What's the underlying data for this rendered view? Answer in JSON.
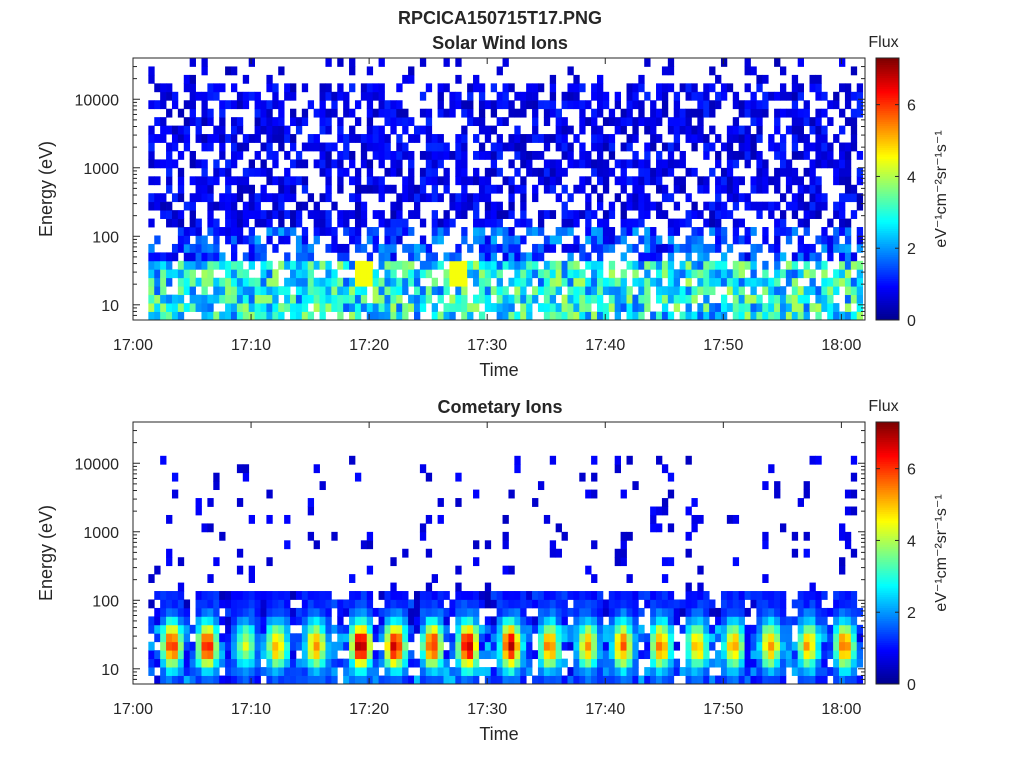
{
  "figure_title": "RPCICA150715T17.PNG",
  "colormap": [
    "#00008f",
    "#0000ff",
    "#0080ff",
    "#00ffff",
    "#80ff80",
    "#ffff00",
    "#ff8000",
    "#ff0000",
    "#800000"
  ],
  "chart_data": [
    {
      "type": "heatmap",
      "title": "Solar Wind Ions",
      "xlabel": "Time",
      "ylabel": "Energy (eV)",
      "x_ticks": [
        "17:00",
        "17:10",
        "17:20",
        "17:30",
        "17:40",
        "17:50",
        "18:00"
      ],
      "x_range_minutes": [
        0,
        62
      ],
      "y_scale": "log",
      "y_ticks": [
        "10",
        "100",
        "1000",
        "10000"
      ],
      "y_range": [
        6,
        40000
      ],
      "colorbar": {
        "title": "Flux",
        "unit": "eV⁻¹cm⁻²sr⁻¹s⁻¹",
        "ticks": [
          "0",
          "2",
          "4",
          "6"
        ],
        "range": [
          0,
          7.3
        ]
      },
      "data_start_minute": 1.3,
      "data_end_minute": 62,
      "summary": {
        "high_energy_sparse_flux": [
          0.3,
          1.2
        ],
        "low_energy_flux_10_40eV": [
          1.5,
          4.0
        ],
        "peak_flux_events_minutes": [
          19.5,
          27.5
        ],
        "peak_flux_value": 4.5
      }
    },
    {
      "type": "heatmap",
      "title": "Cometary Ions",
      "xlabel": "Time",
      "ylabel": "Energy (eV)",
      "x_ticks": [
        "17:00",
        "17:10",
        "17:20",
        "17:30",
        "17:40",
        "17:50",
        "18:00"
      ],
      "x_range_minutes": [
        0,
        62
      ],
      "y_scale": "log",
      "y_ticks": [
        "10",
        "100",
        "1000",
        "10000"
      ],
      "y_range": [
        6,
        40000
      ],
      "colorbar": {
        "title": "Flux",
        "unit": "eV⁻¹cm⁻²sr⁻¹s⁻¹",
        "ticks": [
          "0",
          "2",
          "4",
          "6"
        ],
        "range": [
          0,
          7.3
        ]
      },
      "data_start_minute": 1.3,
      "data_end_minute": 62,
      "burst_minutes": [
        3.3,
        6.3,
        9.5,
        12.2,
        15.5,
        19.3,
        22.2,
        25.4,
        28.4,
        32.0,
        35.3,
        38.5,
        41.5,
        44.7,
        47.8,
        50.9,
        54.0,
        57.2,
        60.3
      ],
      "burst_peak_flux": [
        6.0,
        6.2,
        4.0,
        5.0,
        5.2,
        7.0,
        6.5,
        6.0,
        6.8,
        6.5,
        5.5,
        5.0,
        5.5,
        5.5,
        5.0,
        5.0,
        5.2,
        5.0,
        5.5
      ],
      "burst_center_energy_eV": 22
    }
  ]
}
